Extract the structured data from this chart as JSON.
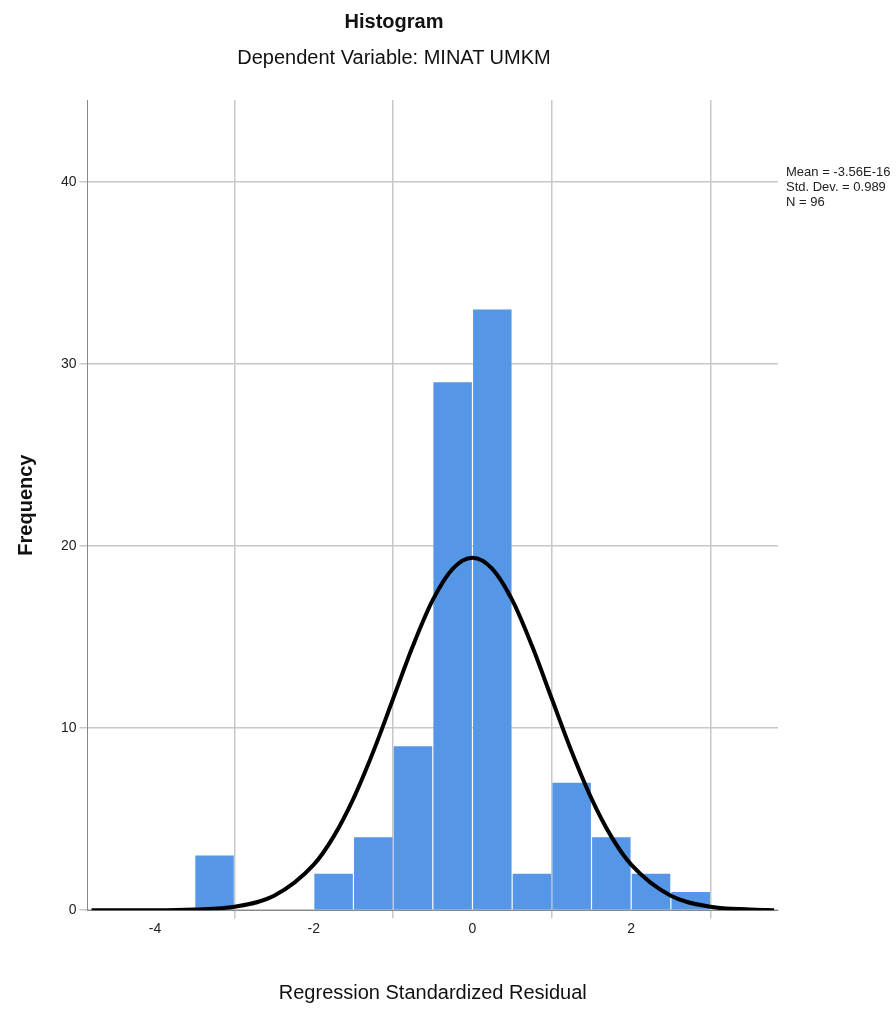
{
  "chart_data": {
    "type": "histogram",
    "title": "Histogram",
    "subtitle": "Dependent Variable: MINAT UMKM",
    "xlabel": "Regression Standardized Residual",
    "ylabel": "Frequency",
    "bins": [
      -3.5,
      -3,
      -2.5,
      -2,
      -1.5,
      -1,
      -0.5,
      0,
      0.5,
      1,
      1.5,
      2,
      2.5,
      3
    ],
    "values": [
      3,
      0,
      0,
      2,
      4,
      9,
      29,
      33,
      2,
      7,
      4,
      2,
      1
    ],
    "color": "#5596e6",
    "series": [
      {
        "type": "line",
        "color": "#000000",
        "x": [
          -4.8,
          -4,
          -3.5,
          -3,
          -2.5,
          -2,
          -1.75,
          -1.5,
          -1.25,
          -1,
          -0.75,
          -0.5,
          -0.25,
          0,
          0.25,
          0.5,
          0.75,
          1,
          1.25,
          1.5,
          1.75,
          2,
          2.5,
          3,
          3.5,
          3.8
        ],
        "values": [
          0,
          0,
          0.04,
          0.19,
          0.79,
          2.5,
          4.04,
          6.13,
          8.71,
          11.61,
          14.52,
          17.04,
          18.75,
          19.36,
          18.75,
          17.04,
          14.52,
          11.61,
          8.71,
          6.13,
          4.04,
          2.5,
          0.79,
          0.19,
          0.04,
          0
        ]
      }
    ],
    "xlim": [
      -4.85,
      3.85
    ],
    "xticks": [
      -4,
      -2,
      0,
      2
    ],
    "ylim": [
      0,
      44.5
    ],
    "yticks": [
      0,
      10,
      20,
      30,
      40
    ],
    "grid": true,
    "legend": false,
    "marker": "none",
    "line_style": "solid",
    "annotations": [
      "Mean = -3.56E-16",
      "Std. Dev. = 0.989",
      "N = 96"
    ]
  }
}
